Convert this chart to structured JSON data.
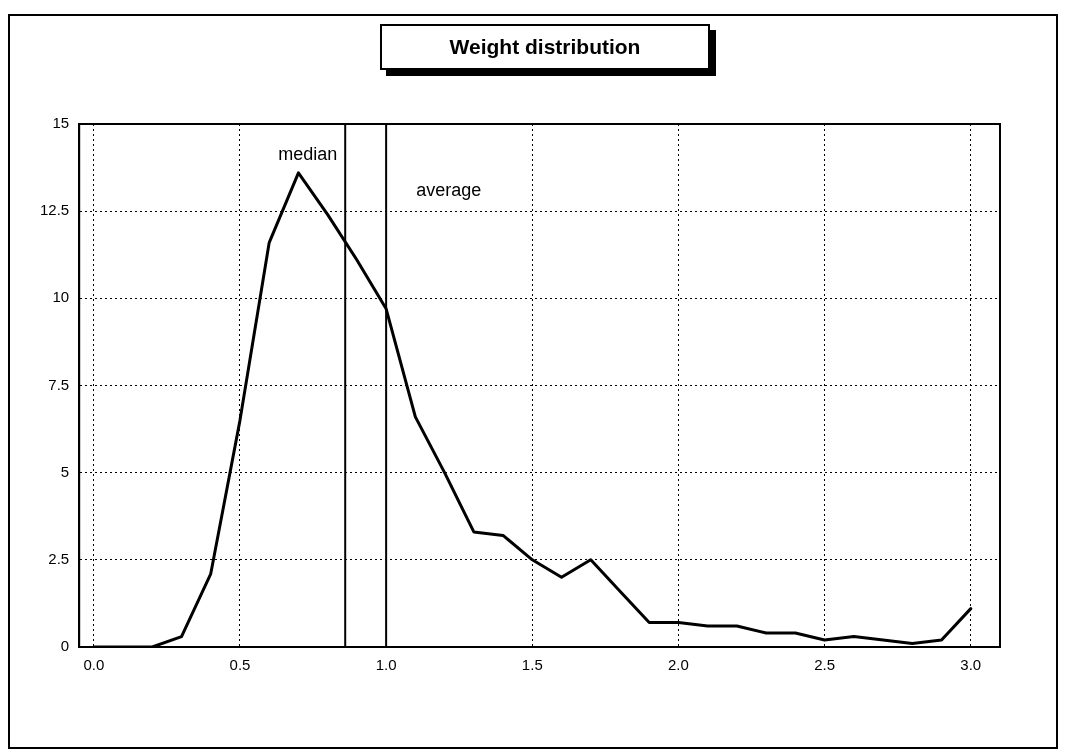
{
  "chart_data": {
    "type": "line",
    "title": "Weight distribution",
    "x": [
      0,
      0.1,
      0.2,
      0.3,
      0.4,
      0.5,
      0.6,
      0.7,
      0.8,
      0.9,
      1.0,
      1.1,
      1.2,
      1.3,
      1.4,
      1.5,
      1.6,
      1.7,
      1.8,
      1.9,
      2.0,
      2.1,
      2.2,
      2.3,
      2.4,
      2.5,
      2.6,
      2.7,
      2.8,
      2.9,
      3.0
    ],
    "series": [
      {
        "color": "#000000",
        "values": [
          0,
          0,
          0,
          0.3,
          2.1,
          6.5,
          11.6,
          13.6,
          12.4,
          11.1,
          9.7,
          6.6,
          5.0,
          3.3,
          3.2,
          2.5,
          2.0,
          2.5,
          1.6,
          0.7,
          0.7,
          0.6,
          0.6,
          0.4,
          0.4,
          0.2,
          0.3,
          0.2,
          0.1,
          0.2,
          1.1
        ]
      }
    ],
    "xlim": [
      -0.05,
      3.1
    ],
    "xticks": [
      {
        "value": 0,
        "label": "0.0"
      },
      {
        "value": 0.5,
        "label": "0.5"
      },
      {
        "value": 1,
        "label": "1.0"
      },
      {
        "value": 1.5,
        "label": "1.5"
      },
      {
        "value": 2,
        "label": "2.0"
      },
      {
        "value": 2.5,
        "label": "2.5"
      },
      {
        "value": 3,
        "label": "3.0"
      }
    ],
    "ylim": [
      0,
      15
    ],
    "yticks": [
      0,
      2.5,
      5,
      7.5,
      10,
      12.5,
      15
    ],
    "ref_lines": [
      {
        "axis": "x",
        "value": 0.86,
        "label": "median",
        "color": "#000000"
      },
      {
        "axis": "x",
        "value": 1.0,
        "label": "average",
        "color": "#000000"
      }
    ],
    "grid": true,
    "marker": "none",
    "line_style": "solid",
    "legend": false
  }
}
